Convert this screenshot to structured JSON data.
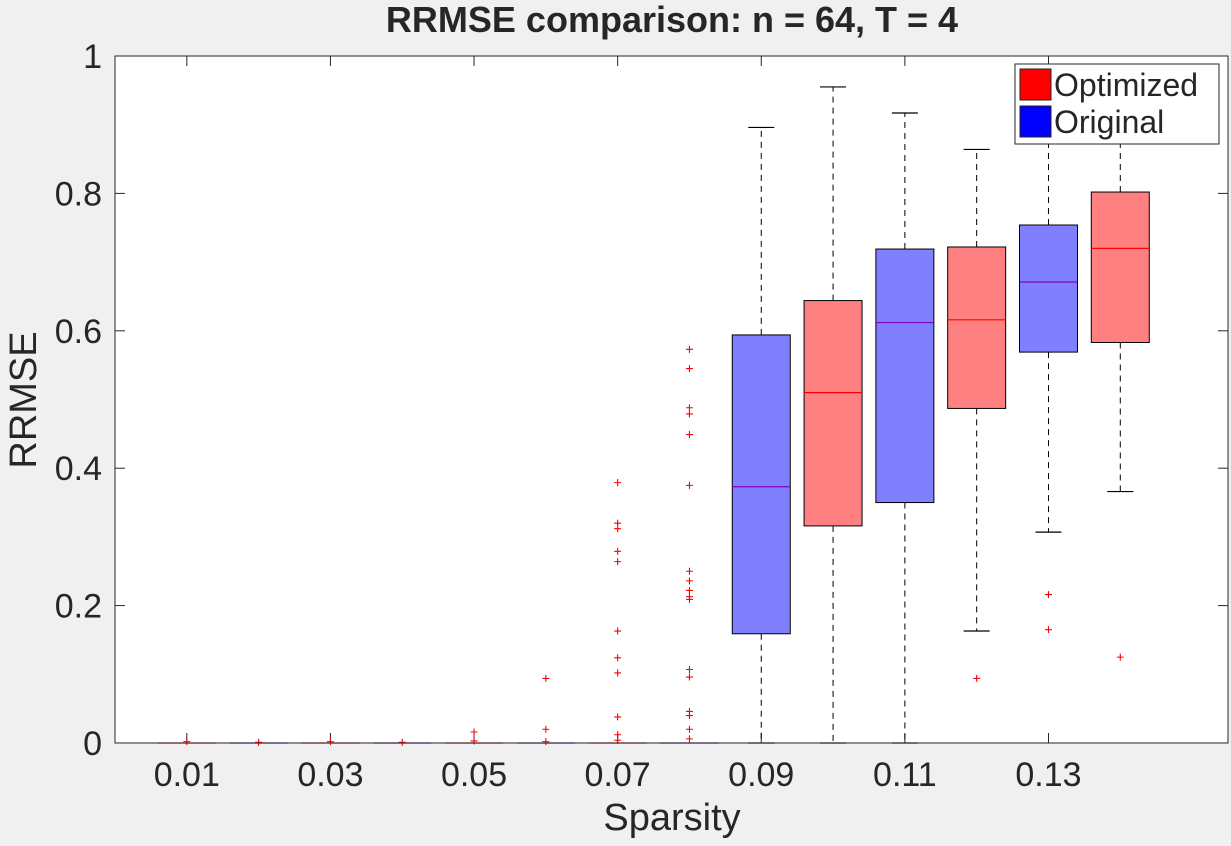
{
  "chart_data": {
    "type": "box",
    "title": "RRMSE comparison: n = 64, T = 4",
    "xlabel": "Sparsity",
    "ylabel": "RRMSE",
    "xlim": [
      0,
      0.155
    ],
    "ylim": [
      0,
      1
    ],
    "xticks": [
      "0.01",
      "0.03",
      "0.05",
      "0.07",
      "0.09",
      "0.11",
      "0.13"
    ],
    "xtick_values": [
      0.01,
      0.03,
      0.05,
      0.07,
      0.09,
      0.11,
      0.13
    ],
    "yticks": [
      "0",
      "0.2",
      "0.4",
      "0.6",
      "0.8",
      "1"
    ],
    "ytick_values": [
      0,
      0.2,
      0.4,
      0.6,
      0.8,
      1
    ],
    "legend": {
      "position": "top-right",
      "entries": [
        {
          "label": "Optimized",
          "color": "#ff0000"
        },
        {
          "label": "Original",
          "color": "#0000ff"
        }
      ]
    },
    "colors": {
      "optimized_fill": "#ff8080",
      "original_fill": "#8080ff",
      "median_optimized": "#ff0000",
      "median_original": "#8000c0",
      "outlier": "#ff0000"
    },
    "boxes": [
      {
        "x": 0.01,
        "series": "Optimized",
        "q1": 0,
        "median": 0,
        "q3": 0,
        "whisker_low": 0,
        "whisker_high": 0,
        "outliers": [
          0.002
        ]
      },
      {
        "x": 0.02,
        "series": "Original",
        "q1": 0,
        "median": 0,
        "q3": 0,
        "whisker_low": 0,
        "whisker_high": 0,
        "outliers": [
          0.001
        ]
      },
      {
        "x": 0.03,
        "series": "Optimized",
        "q1": 0,
        "median": 0,
        "q3": 0,
        "whisker_low": 0,
        "whisker_high": 0,
        "outliers": [
          0.002
        ]
      },
      {
        "x": 0.04,
        "series": "Original",
        "q1": 0,
        "median": 0,
        "q3": 0,
        "whisker_low": 0,
        "whisker_high": 0,
        "outliers": [
          0.001
        ]
      },
      {
        "x": 0.05,
        "series": "Optimized",
        "q1": 0,
        "median": 0,
        "q3": 0,
        "whisker_low": 0,
        "whisker_high": 0,
        "outliers": [
          0.016,
          0.003
        ]
      },
      {
        "x": 0.06,
        "series": "Original",
        "q1": 0,
        "median": 0,
        "q3": 0,
        "whisker_low": 0,
        "whisker_high": 0,
        "outliers": [
          0.094,
          0.02,
          0.002
        ]
      },
      {
        "x": 0.07,
        "series": "Optimized",
        "q1": 0,
        "median": 0,
        "q3": 0,
        "whisker_low": 0,
        "whisker_high": 0,
        "outliers": [
          0.379,
          0.32,
          0.312,
          0.279,
          0.264,
          0.163,
          0.124,
          0.102,
          0.038,
          0.012,
          0.004
        ]
      },
      {
        "x": 0.08,
        "series": "Original",
        "q1": 0,
        "median": 0,
        "q3": 0,
        "whisker_low": 0,
        "whisker_high": 0,
        "outliers": [
          0.573,
          0.545,
          0.488,
          0.479,
          0.449,
          0.375,
          0.25,
          0.236,
          0.222,
          0.213,
          0.209,
          0.107,
          0.096,
          0.046,
          0.04,
          0.02,
          0.006
        ]
      },
      {
        "x": 0.09,
        "series": "Original",
        "q1": 0.159,
        "median": 0.373,
        "q3": 0.594,
        "whisker_low": 0,
        "whisker_high": 0.896,
        "outliers": []
      },
      {
        "x": 0.1,
        "series": "Optimized",
        "q1": 0.316,
        "median": 0.51,
        "q3": 0.644,
        "whisker_low": 0,
        "whisker_high": 0.955,
        "outliers": []
      },
      {
        "x": 0.11,
        "series": "Original",
        "q1": 0.35,
        "median": 0.612,
        "q3": 0.719,
        "whisker_low": 0,
        "whisker_high": 0.917,
        "outliers": []
      },
      {
        "x": 0.12,
        "series": "Optimized",
        "q1": 0.487,
        "median": 0.616,
        "q3": 0.722,
        "whisker_low": 0.163,
        "whisker_high": 0.864,
        "outliers": [
          0.094
        ]
      },
      {
        "x": 0.13,
        "series": "Original",
        "q1": 0.569,
        "median": 0.671,
        "q3": 0.754,
        "whisker_low": 0.307,
        "whisker_high": 0.9,
        "outliers": [
          0.216,
          0.165
        ]
      },
      {
        "x": 0.14,
        "series": "Optimized",
        "q1": 0.583,
        "median": 0.72,
        "q3": 0.802,
        "whisker_low": 0.366,
        "whisker_high": 0.89,
        "outliers": [
          0.125
        ]
      }
    ]
  }
}
